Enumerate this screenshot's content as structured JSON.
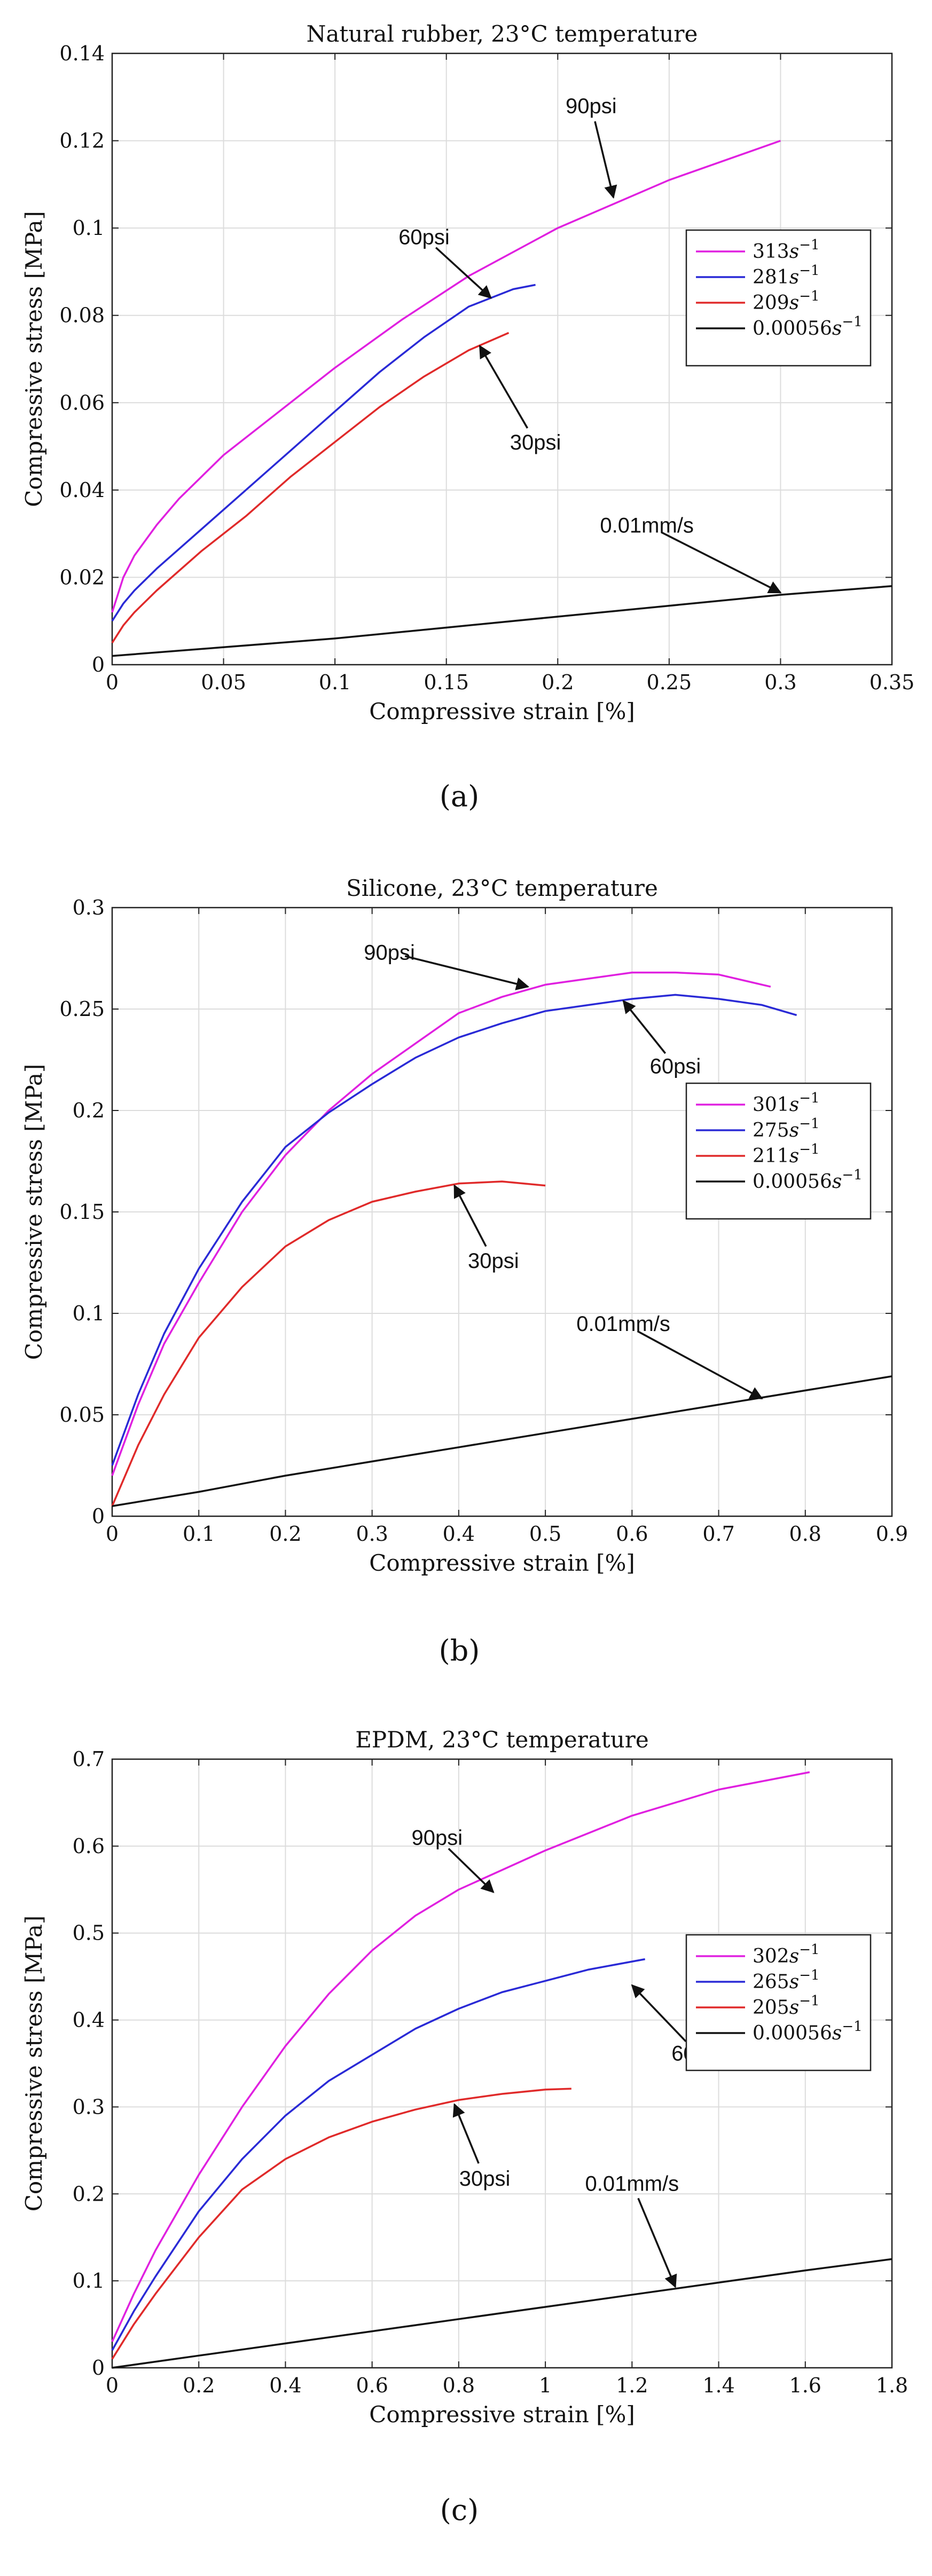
{
  "chart_data": [
    {
      "type": "line",
      "caption": "(a)",
      "title": "Natural rubber, 23°C temperature",
      "xlabel": "Compressive strain [%]",
      "ylabel": "Compressive stress [MPa]",
      "xlim": [
        0,
        0.35
      ],
      "ylim": [
        0,
        0.14
      ],
      "xticks": [
        0,
        0.05,
        0.1,
        0.15,
        0.2,
        0.25,
        0.3,
        0.35
      ],
      "xtick_labels": [
        "0",
        "0.05",
        "0.1",
        "0.15",
        "0.2",
        "0.25",
        "0.3",
        "0.35"
      ],
      "yticks": [
        0,
        0.02,
        0.04,
        0.06,
        0.08,
        0.1,
        0.12,
        0.14
      ],
      "ytick_labels": [
        "0",
        "0.02",
        "0.04",
        "0.06",
        "0.08",
        "0.1",
        "0.12",
        "0.14"
      ],
      "grid": true,
      "legend_position": "center-right",
      "series": [
        {
          "name": "313s^-1",
          "legend_base": "313",
          "color": "#e020e0",
          "points": [
            [
              0,
              0.012
            ],
            [
              0.005,
              0.02
            ],
            [
              0.01,
              0.025
            ],
            [
              0.02,
              0.032
            ],
            [
              0.03,
              0.038
            ],
            [
              0.05,
              0.048
            ],
            [
              0.07,
              0.056
            ],
            [
              0.1,
              0.068
            ],
            [
              0.13,
              0.079
            ],
            [
              0.16,
              0.089
            ],
            [
              0.2,
              0.1
            ],
            [
              0.25,
              0.111
            ],
            [
              0.3,
              0.12
            ]
          ]
        },
        {
          "name": "281s^-1",
          "legend_base": "281",
          "color": "#2a2ad6",
          "points": [
            [
              0,
              0.01
            ],
            [
              0.005,
              0.014
            ],
            [
              0.01,
              0.017
            ],
            [
              0.02,
              0.022
            ],
            [
              0.04,
              0.031
            ],
            [
              0.06,
              0.04
            ],
            [
              0.08,
              0.049
            ],
            [
              0.1,
              0.058
            ],
            [
              0.12,
              0.067
            ],
            [
              0.14,
              0.075
            ],
            [
              0.16,
              0.082
            ],
            [
              0.18,
              0.086
            ],
            [
              0.19,
              0.087
            ]
          ]
        },
        {
          "name": "209s^-1",
          "legend_base": "209",
          "color": "#e02a2a",
          "points": [
            [
              0,
              0.005
            ],
            [
              0.005,
              0.009
            ],
            [
              0.01,
              0.012
            ],
            [
              0.02,
              0.017
            ],
            [
              0.04,
              0.026
            ],
            [
              0.06,
              0.034
            ],
            [
              0.08,
              0.043
            ],
            [
              0.1,
              0.051
            ],
            [
              0.12,
              0.059
            ],
            [
              0.14,
              0.066
            ],
            [
              0.16,
              0.072
            ],
            [
              0.178,
              0.076
            ]
          ]
        },
        {
          "name": "0.00056s^-1",
          "legend_base": "0.00056",
          "color": "#111111",
          "points": [
            [
              0,
              0.002
            ],
            [
              0.05,
              0.004
            ],
            [
              0.1,
              0.006
            ],
            [
              0.15,
              0.0085
            ],
            [
              0.2,
              0.011
            ],
            [
              0.25,
              0.0135
            ],
            [
              0.3,
              0.016
            ],
            [
              0.35,
              0.018
            ]
          ]
        }
      ],
      "annotations": [
        {
          "text": "90psi",
          "at": [
            0.215,
            0.128
          ],
          "arrow_to": [
            0.225,
            0.107
          ]
        },
        {
          "text": "60psi",
          "at": [
            0.14,
            0.098
          ],
          "arrow_to": [
            0.17,
            0.084
          ]
        },
        {
          "text": "30psi",
          "at": [
            0.19,
            0.051
          ],
          "arrow_to": [
            0.165,
            0.073
          ]
        },
        {
          "text": "0.01mm/s",
          "at": [
            0.24,
            0.032
          ],
          "arrow_to": [
            0.3,
            0.0165
          ]
        }
      ]
    },
    {
      "type": "line",
      "caption": "(b)",
      "title": "Silicone, 23°C temperature",
      "xlabel": "Compressive strain [%]",
      "ylabel": "Compressive stress [MPa]",
      "xlim": [
        0,
        0.9
      ],
      "ylim": [
        0,
        0.3
      ],
      "xticks": [
        0,
        0.1,
        0.2,
        0.3,
        0.4,
        0.5,
        0.6,
        0.7,
        0.8,
        0.9
      ],
      "xtick_labels": [
        "0",
        "0.1",
        "0.2",
        "0.3",
        "0.4",
        "0.5",
        "0.6",
        "0.7",
        "0.8",
        "0.9"
      ],
      "yticks": [
        0,
        0.05,
        0.1,
        0.15,
        0.2,
        0.25,
        0.3
      ],
      "ytick_labels": [
        "0",
        "0.05",
        "0.1",
        "0.15",
        "0.2",
        "0.25",
        "0.3"
      ],
      "grid": true,
      "legend_position": "center-right",
      "series": [
        {
          "name": "301s^-1",
          "legend_base": "301",
          "color": "#e020e0",
          "points": [
            [
              0,
              0.02
            ],
            [
              0.03,
              0.055
            ],
            [
              0.06,
              0.085
            ],
            [
              0.1,
              0.115
            ],
            [
              0.15,
              0.15
            ],
            [
              0.2,
              0.178
            ],
            [
              0.25,
              0.2
            ],
            [
              0.3,
              0.218
            ],
            [
              0.35,
              0.233
            ],
            [
              0.4,
              0.248
            ],
            [
              0.45,
              0.256
            ],
            [
              0.5,
              0.262
            ],
            [
              0.55,
              0.265
            ],
            [
              0.6,
              0.268
            ],
            [
              0.65,
              0.268
            ],
            [
              0.7,
              0.267
            ],
            [
              0.76,
              0.261
            ]
          ]
        },
        {
          "name": "275s^-1",
          "legend_base": "275",
          "color": "#2a2ad6",
          "points": [
            [
              0,
              0.025
            ],
            [
              0.03,
              0.06
            ],
            [
              0.06,
              0.09
            ],
            [
              0.1,
              0.122
            ],
            [
              0.15,
              0.155
            ],
            [
              0.2,
              0.182
            ],
            [
              0.25,
              0.199
            ],
            [
              0.3,
              0.213
            ],
            [
              0.35,
              0.226
            ],
            [
              0.4,
              0.236
            ],
            [
              0.45,
              0.243
            ],
            [
              0.5,
              0.249
            ],
            [
              0.55,
              0.252
            ],
            [
              0.6,
              0.255
            ],
            [
              0.65,
              0.257
            ],
            [
              0.7,
              0.255
            ],
            [
              0.75,
              0.252
            ],
            [
              0.79,
              0.247
            ]
          ]
        },
        {
          "name": "211s^-1",
          "legend_base": "211",
          "color": "#e02a2a",
          "points": [
            [
              0,
              0.005
            ],
            [
              0.03,
              0.035
            ],
            [
              0.06,
              0.06
            ],
            [
              0.1,
              0.088
            ],
            [
              0.15,
              0.113
            ],
            [
              0.2,
              0.133
            ],
            [
              0.25,
              0.146
            ],
            [
              0.3,
              0.155
            ],
            [
              0.35,
              0.16
            ],
            [
              0.4,
              0.164
            ],
            [
              0.45,
              0.165
            ],
            [
              0.5,
              0.163
            ]
          ]
        },
        {
          "name": "0.00056s^-1",
          "legend_base": "0.00056",
          "color": "#111111",
          "points": [
            [
              0,
              0.005
            ],
            [
              0.1,
              0.012
            ],
            [
              0.2,
              0.02
            ],
            [
              0.3,
              0.027
            ],
            [
              0.4,
              0.034
            ],
            [
              0.5,
              0.041
            ],
            [
              0.6,
              0.048
            ],
            [
              0.7,
              0.055
            ],
            [
              0.8,
              0.062
            ],
            [
              0.9,
              0.069
            ]
          ]
        }
      ],
      "annotations": [
        {
          "text": "90psi",
          "at": [
            0.32,
            0.278
          ],
          "arrow_to": [
            0.48,
            0.261
          ]
        },
        {
          "text": "60psi",
          "at": [
            0.65,
            0.222
          ],
          "arrow_to": [
            0.59,
            0.254
          ]
        },
        {
          "text": "30psi",
          "at": [
            0.44,
            0.126
          ],
          "arrow_to": [
            0.395,
            0.163
          ]
        },
        {
          "text": "0.01mm/s",
          "at": [
            0.59,
            0.095
          ],
          "arrow_to": [
            0.75,
            0.058
          ]
        }
      ]
    },
    {
      "type": "line",
      "caption": "(c)",
      "title": "EPDM, 23°C temperature",
      "xlabel": "Compressive strain [%]",
      "ylabel": "Compressive stress [MPa]",
      "xlim": [
        0,
        1.8
      ],
      "ylim": [
        0,
        0.7
      ],
      "xticks": [
        0,
        0.2,
        0.4,
        0.6,
        0.8,
        1,
        1.2,
        1.4,
        1.6,
        1.8
      ],
      "xtick_labels": [
        "0",
        "0.2",
        "0.4",
        "0.6",
        "0.8",
        "1",
        "1.2",
        "1.4",
        "1.6",
        "1.8"
      ],
      "yticks": [
        0,
        0.1,
        0.2,
        0.3,
        0.4,
        0.5,
        0.6,
        0.7
      ],
      "ytick_labels": [
        "0",
        "0.1",
        "0.2",
        "0.3",
        "0.4",
        "0.5",
        "0.6",
        "0.7"
      ],
      "grid": true,
      "legend_position": "center-right",
      "series": [
        {
          "name": "302s^-1",
          "legend_base": "302",
          "color": "#e020e0",
          "points": [
            [
              0,
              0.03
            ],
            [
              0.05,
              0.085
            ],
            [
              0.1,
              0.135
            ],
            [
              0.2,
              0.222
            ],
            [
              0.3,
              0.3
            ],
            [
              0.4,
              0.37
            ],
            [
              0.5,
              0.43
            ],
            [
              0.6,
              0.48
            ],
            [
              0.7,
              0.52
            ],
            [
              0.8,
              0.55
            ],
            [
              1,
              0.595
            ],
            [
              1.2,
              0.635
            ],
            [
              1.4,
              0.665
            ],
            [
              1.61,
              0.685
            ]
          ]
        },
        {
          "name": "265s^-1",
          "legend_base": "265",
          "color": "#2a2ad6",
          "points": [
            [
              0,
              0.02
            ],
            [
              0.05,
              0.065
            ],
            [
              0.1,
              0.105
            ],
            [
              0.2,
              0.18
            ],
            [
              0.3,
              0.24
            ],
            [
              0.4,
              0.29
            ],
            [
              0.5,
              0.33
            ],
            [
              0.6,
              0.36
            ],
            [
              0.7,
              0.39
            ],
            [
              0.8,
              0.413
            ],
            [
              0.9,
              0.432
            ],
            [
              1,
              0.445
            ],
            [
              1.1,
              0.458
            ],
            [
              1.23,
              0.47
            ]
          ]
        },
        {
          "name": "205s^-1",
          "legend_base": "205",
          "color": "#e02a2a",
          "points": [
            [
              0,
              0.01
            ],
            [
              0.05,
              0.05
            ],
            [
              0.1,
              0.085
            ],
            [
              0.2,
              0.15
            ],
            [
              0.3,
              0.205
            ],
            [
              0.4,
              0.24
            ],
            [
              0.5,
              0.265
            ],
            [
              0.6,
              0.283
            ],
            [
              0.7,
              0.297
            ],
            [
              0.8,
              0.308
            ],
            [
              0.9,
              0.315
            ],
            [
              1,
              0.32
            ],
            [
              1.06,
              0.321
            ]
          ]
        },
        {
          "name": "0.00056s^-1",
          "legend_base": "0.00056",
          "color": "#111111",
          "points": [
            [
              0,
              0
            ],
            [
              0.2,
              0.014
            ],
            [
              0.4,
              0.028
            ],
            [
              0.6,
              0.042
            ],
            [
              0.8,
              0.056
            ],
            [
              1,
              0.07
            ],
            [
              1.2,
              0.084
            ],
            [
              1.4,
              0.098
            ],
            [
              1.6,
              0.112
            ],
            [
              1.8,
              0.125
            ]
          ]
        }
      ],
      "annotations": [
        {
          "text": "90psi",
          "at": [
            0.75,
            0.61
          ],
          "arrow_to": [
            0.88,
            0.547
          ]
        },
        {
          "text": "60psi",
          "at": [
            1.35,
            0.362
          ],
          "arrow_to": [
            1.2,
            0.44
          ]
        },
        {
          "text": "30psi",
          "at": [
            0.86,
            0.218
          ],
          "arrow_to": [
            0.79,
            0.303
          ]
        },
        {
          "text": "0.01mm/s",
          "at": [
            1.2,
            0.212
          ],
          "arrow_to": [
            1.3,
            0.093
          ]
        }
      ]
    }
  ]
}
